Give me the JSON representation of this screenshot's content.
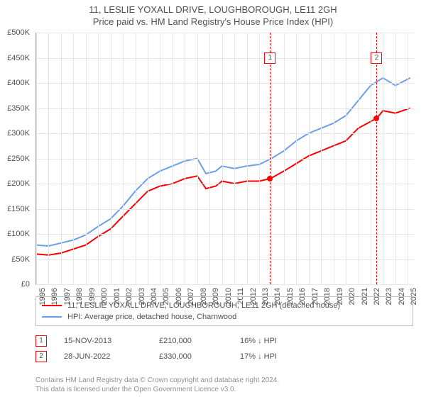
{
  "title": {
    "line1": "11, LESLIE YOXALL DRIVE, LOUGHBOROUGH, LE11 2GH",
    "line2": "Price paid vs. HM Land Registry's House Price Index (HPI)"
  },
  "chart": {
    "type": "line",
    "background_color": "#ffffff",
    "grid_color": "#e5e5e5",
    "axis_color": "#a0a0a0",
    "label_fontsize": 11,
    "label_color": "#505050",
    "x_range": [
      1995,
      2025.5
    ],
    "y_range": [
      0,
      500000
    ],
    "y_ticks": [
      0,
      50000,
      100000,
      150000,
      200000,
      250000,
      300000,
      350000,
      400000,
      450000,
      500000
    ],
    "y_tick_labels": [
      "£0",
      "£50K",
      "£100K",
      "£150K",
      "£200K",
      "£250K",
      "£300K",
      "£350K",
      "£400K",
      "£450K",
      "£500K"
    ],
    "x_ticks": [
      1995,
      1996,
      1997,
      1998,
      1999,
      2000,
      2001,
      2002,
      2003,
      2004,
      2005,
      2006,
      2007,
      2008,
      2009,
      2010,
      2011,
      2012,
      2013,
      2014,
      2015,
      2016,
      2017,
      2018,
      2019,
      2020,
      2021,
      2022,
      2023,
      2024,
      2025
    ],
    "series": [
      {
        "name": "property",
        "label": "11, LESLIE YOXALL DRIVE, LOUGHBOROUGH, LE11 2GH (detached house)",
        "color": "#ff0000",
        "line_width": 2,
        "points": [
          [
            1995.0,
            60000
          ],
          [
            1996.0,
            58000
          ],
          [
            1997.0,
            62000
          ],
          [
            1998.0,
            70000
          ],
          [
            1999.0,
            78000
          ],
          [
            2000.0,
            95000
          ],
          [
            2001.0,
            110000
          ],
          [
            2002.0,
            135000
          ],
          [
            2003.0,
            160000
          ],
          [
            2004.0,
            185000
          ],
          [
            2005.0,
            195000
          ],
          [
            2006.0,
            200000
          ],
          [
            2007.0,
            210000
          ],
          [
            2008.0,
            215000
          ],
          [
            2008.7,
            190000
          ],
          [
            2009.5,
            195000
          ],
          [
            2010.0,
            205000
          ],
          [
            2011.0,
            200000
          ],
          [
            2012.0,
            205000
          ],
          [
            2013.0,
            205000
          ],
          [
            2013.9,
            210000
          ],
          [
            2015.0,
            225000
          ],
          [
            2016.0,
            240000
          ],
          [
            2017.0,
            255000
          ],
          [
            2018.0,
            265000
          ],
          [
            2019.0,
            275000
          ],
          [
            2020.0,
            285000
          ],
          [
            2021.0,
            310000
          ],
          [
            2022.5,
            330000
          ],
          [
            2023.0,
            345000
          ],
          [
            2024.0,
            340000
          ],
          [
            2025.2,
            350000
          ]
        ]
      },
      {
        "name": "hpi",
        "label": "HPI: Average price, detached house, Charnwood",
        "color": "#6d9eeb",
        "line_width": 2,
        "points": [
          [
            1995.0,
            78000
          ],
          [
            1996.0,
            76000
          ],
          [
            1997.0,
            82000
          ],
          [
            1998.0,
            88000
          ],
          [
            1999.0,
            98000
          ],
          [
            2000.0,
            115000
          ],
          [
            2001.0,
            130000
          ],
          [
            2002.0,
            155000
          ],
          [
            2003.0,
            185000
          ],
          [
            2004.0,
            210000
          ],
          [
            2005.0,
            225000
          ],
          [
            2006.0,
            235000
          ],
          [
            2007.0,
            245000
          ],
          [
            2008.0,
            250000
          ],
          [
            2008.7,
            220000
          ],
          [
            2009.5,
            225000
          ],
          [
            2010.0,
            235000
          ],
          [
            2011.0,
            230000
          ],
          [
            2012.0,
            235000
          ],
          [
            2013.0,
            238000
          ],
          [
            2014.0,
            250000
          ],
          [
            2015.0,
            265000
          ],
          [
            2016.0,
            285000
          ],
          [
            2017.0,
            300000
          ],
          [
            2018.0,
            310000
          ],
          [
            2019.0,
            320000
          ],
          [
            2020.0,
            335000
          ],
          [
            2021.0,
            365000
          ],
          [
            2022.0,
            395000
          ],
          [
            2023.0,
            410000
          ],
          [
            2024.0,
            395000
          ],
          [
            2025.2,
            410000
          ]
        ]
      }
    ],
    "markers": [
      {
        "n": "1",
        "x": 2013.88,
        "box_y": 450000,
        "dot_y": 210000
      },
      {
        "n": "2",
        "x": 2022.49,
        "box_y": 450000,
        "dot_y": 330000
      }
    ]
  },
  "legend": {
    "border_color": "#c0c0c0",
    "fontsize": 11,
    "rows": [
      {
        "color": "#ff0000",
        "label_path": "chart.series.0.label"
      },
      {
        "color": "#6d9eeb",
        "label_path": "chart.series.1.label"
      }
    ]
  },
  "events": [
    {
      "n": "1",
      "date": "15-NOV-2013",
      "price": "£210,000",
      "hpi_delta": "16% ↓ HPI"
    },
    {
      "n": "2",
      "date": "28-JUN-2022",
      "price": "£330,000",
      "hpi_delta": "17% ↓ HPI"
    }
  ],
  "attribution": {
    "line1": "Contains HM Land Registry data © Crown copyright and database right 2024.",
    "line2": "This data is licensed under the Open Government Licence v3.0."
  }
}
